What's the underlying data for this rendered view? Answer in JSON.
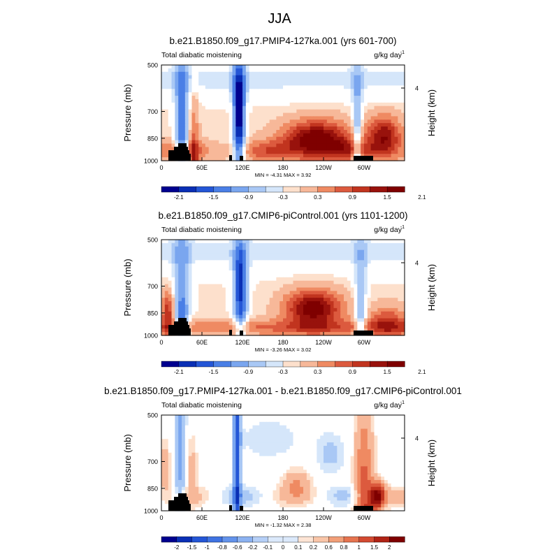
{
  "figure_title": "JJA",
  "chart_data": [
    {
      "type": "heatmap",
      "title": "b.e21.B1850.f09_g17.PMIP4-127ka.001 (yrs 601-700)",
      "left_label": "Total diabatic moistening",
      "units_base": "g/kg day",
      "units_exp": "-1",
      "ylabel": "Pressure (mb)",
      "ylabel_right": "Height (km)",
      "yticks": [
        "500",
        "700",
        "850",
        "1000"
      ],
      "yticks_right": [
        "4"
      ],
      "xticks": [
        "0",
        "60E",
        "120E",
        "180",
        "120W",
        "60W"
      ],
      "stats": "MIN = -4.31   MAX =  3.92",
      "colorbar_labels": [
        "-2.1",
        "-1.5",
        "-0.9",
        "-0.3",
        "0.3",
        "0.9",
        "1.5",
        "2.1"
      ],
      "colors": {
        "neg_strong": "#00008f",
        "neutral": "#ffffff",
        "pos_strong": "#7f0000"
      }
    },
    {
      "type": "heatmap",
      "title": "b.e21.B1850.f09_g17.CMIP6-piControl.001 (yrs 1101-1200)",
      "left_label": "Total diabatic moistening",
      "units_base": "g/kg day",
      "units_exp": "-1",
      "ylabel": "Pressure (mb)",
      "ylabel_right": "Height (km)",
      "yticks": [
        "500",
        "700",
        "850",
        "1000"
      ],
      "yticks_right": [
        "4"
      ],
      "xticks": [
        "0",
        "60E",
        "120E",
        "180",
        "120W",
        "60W"
      ],
      "stats": "MIN = -3.26   MAX =  3.02",
      "colorbar_labels": [
        "-2.1",
        "-1.5",
        "-0.9",
        "-0.3",
        "0.3",
        "0.9",
        "1.5",
        "2.1"
      ]
    },
    {
      "type": "heatmap",
      "title": "b.e21.B1850.f09_g17.PMIP4-127ka.001 - b.e21.B1850.f09_g17.CMIP6-piControl.001",
      "left_label": "Total diabatic moistening",
      "units_base": "g/kg day",
      "units_exp": "-1",
      "ylabel": "Pressure (mb)",
      "ylabel_right": "Height (km)",
      "yticks": [
        "500",
        "700",
        "850",
        "1000"
      ],
      "yticks_right": [
        "4"
      ],
      "xticks": [
        "0",
        "60E",
        "120E",
        "180",
        "120W",
        "60W"
      ],
      "stats": "MIN = -1.32   MAX =  2.38",
      "colorbar_labels": [
        "-2",
        "-1.5",
        "-1",
        "-0.8",
        "-0.6",
        "-0.2",
        "-0.1",
        "0",
        "0.1",
        "0.2",
        "0.6",
        "0.8",
        "1",
        "1.5",
        "2"
      ]
    }
  ]
}
